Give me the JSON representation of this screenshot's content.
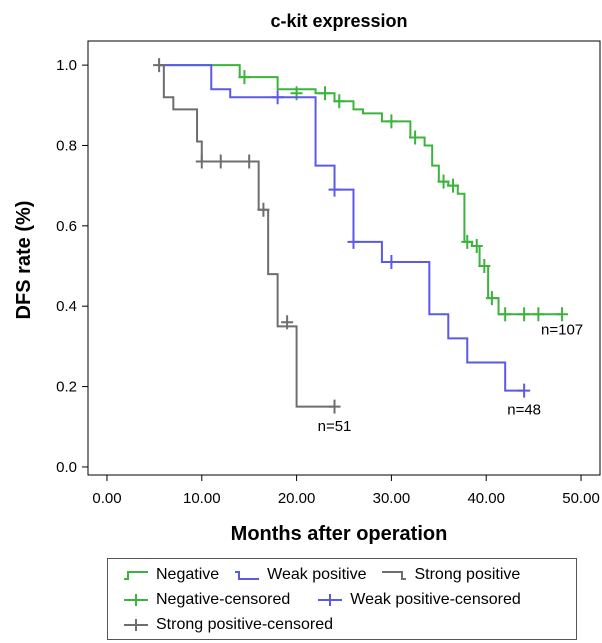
{
  "chart_data": {
    "type": "line",
    "subtype": "kaplan-meier step",
    "title": "c-kit expression",
    "xlabel": "Months after operation",
    "ylabel": "DFS rate (%)",
    "xlim": [
      -2,
      52
    ],
    "ylim": [
      -0.02,
      1.06
    ],
    "xticks": [
      0,
      10,
      20,
      30,
      40,
      50
    ],
    "xtick_labels": [
      "0.00",
      "10.00",
      "20.00",
      "30.00",
      "40.00",
      "50.00"
    ],
    "yticks": [
      0,
      0.2,
      0.4,
      0.6,
      0.8,
      1.0
    ],
    "ytick_labels": [
      "0.0",
      "0.2",
      "0.4",
      "0.6",
      "0.8",
      "1.0"
    ],
    "grid": false,
    "legend_position": "bottom",
    "series": [
      {
        "name": "Negative",
        "color": "#3cb33c",
        "steps": [
          [
            5.5,
            1.0
          ],
          [
            9,
            1.0
          ],
          [
            14,
            0.97
          ],
          [
            18,
            0.94
          ],
          [
            22,
            0.93
          ],
          [
            24,
            0.91
          ],
          [
            26,
            0.89
          ],
          [
            27,
            0.88
          ],
          [
            29,
            0.86
          ],
          [
            32,
            0.82
          ],
          [
            33.5,
            0.8
          ],
          [
            34.3,
            0.75
          ],
          [
            35,
            0.71
          ],
          [
            36,
            0.7
          ],
          [
            37,
            0.68
          ],
          [
            37.7,
            0.56
          ],
          [
            38.5,
            0.55
          ],
          [
            39.3,
            0.5
          ],
          [
            40.2,
            0.42
          ],
          [
            41.3,
            0.38
          ],
          [
            48,
            0.38
          ]
        ],
        "censored": [
          [
            14.5,
            0.97
          ],
          [
            20,
            0.93
          ],
          [
            23,
            0.93
          ],
          [
            24.5,
            0.91
          ],
          [
            30,
            0.86
          ],
          [
            32.5,
            0.82
          ],
          [
            35.5,
            0.71
          ],
          [
            36.5,
            0.7
          ],
          [
            38,
            0.56
          ],
          [
            39,
            0.55
          ],
          [
            39.8,
            0.5
          ],
          [
            40.6,
            0.42
          ],
          [
            42,
            0.38
          ],
          [
            44,
            0.38
          ],
          [
            45.5,
            0.38
          ],
          [
            48,
            0.38
          ]
        ]
      },
      {
        "name": "Weak positive",
        "color": "#5a5ae6",
        "steps": [
          [
            5.5,
            1.0
          ],
          [
            11,
            0.94
          ],
          [
            13,
            0.92
          ],
          [
            22,
            0.75
          ],
          [
            24,
            0.69
          ],
          [
            26,
            0.56
          ],
          [
            29,
            0.51
          ],
          [
            34,
            0.38
          ],
          [
            36,
            0.32
          ],
          [
            38,
            0.26
          ],
          [
            42,
            0.19
          ],
          [
            44,
            0.19
          ]
        ],
        "censored": [
          [
            18,
            0.92
          ],
          [
            24,
            0.69
          ],
          [
            26,
            0.56
          ],
          [
            30,
            0.51
          ],
          [
            44,
            0.19
          ]
        ]
      },
      {
        "name": "Strong positive",
        "color": "#6e6e6e",
        "steps": [
          [
            5.5,
            1.0
          ],
          [
            6,
            0.92
          ],
          [
            7,
            0.89
          ],
          [
            9.5,
            0.81
          ],
          [
            10,
            0.76
          ],
          [
            16,
            0.64
          ],
          [
            17,
            0.48
          ],
          [
            18,
            0.35
          ],
          [
            20,
            0.15
          ],
          [
            24,
            0.15
          ]
        ],
        "censored": [
          [
            5.5,
            1.0
          ],
          [
            10,
            0.76
          ],
          [
            12,
            0.76
          ],
          [
            15,
            0.76
          ],
          [
            16.5,
            0.64
          ],
          [
            19,
            0.36
          ],
          [
            24,
            0.15
          ]
        ]
      }
    ],
    "annotations": [
      {
        "text": "n=107",
        "x": 48,
        "y": 0.33
      },
      {
        "text": "n=48",
        "x": 44,
        "y": 0.13
      },
      {
        "text": "n=51",
        "x": 24,
        "y": 0.09
      }
    ]
  },
  "legend": {
    "line_items": [
      "Negative",
      "Weak positive",
      "Strong positive"
    ],
    "censored_items": [
      "Negative-censored",
      "Weak positive-censored",
      "Strong positive-censored"
    ]
  }
}
